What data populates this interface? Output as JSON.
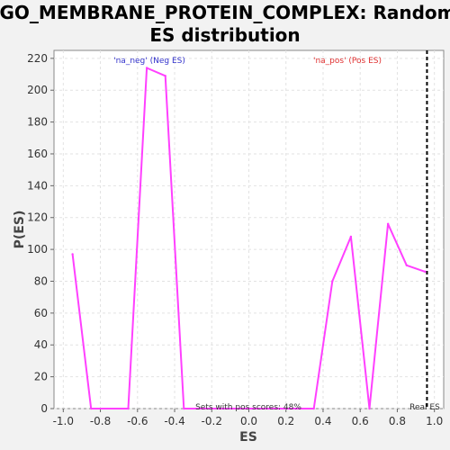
{
  "chart_data": {
    "type": "line",
    "title_lines": [
      "GO_MEMBRANE_PROTEIN_COMPLEX: Random",
      "ES distribution"
    ],
    "xlabel": "ES",
    "ylabel": "P(ES)",
    "xlim": [
      -1.05,
      1.05
    ],
    "ylim": [
      0,
      225
    ],
    "xticks": [
      -1.0,
      -0.8,
      -0.6,
      -0.4,
      -0.2,
      0.0,
      0.2,
      0.4,
      0.6,
      0.8,
      1.0
    ],
    "xtick_labels": [
      "-1.0",
      "-0.8",
      "-0.6",
      "-0.4",
      "-0.2",
      "0.0",
      "0.2",
      "0.4",
      "0.6",
      "0.8",
      "1.0"
    ],
    "yticks": [
      0,
      20,
      40,
      60,
      80,
      100,
      120,
      140,
      160,
      180,
      200,
      220
    ],
    "ytick_labels": [
      "0",
      "20",
      "40",
      "60",
      "80",
      "100",
      "120",
      "140",
      "160",
      "180",
      "200",
      "220"
    ],
    "grid": true,
    "series": [
      {
        "name": "P(ES)",
        "color": "#ff40ff",
        "x": [
          -0.95,
          -0.85,
          -0.65,
          -0.55,
          -0.45,
          -0.35,
          0.35,
          0.45,
          0.55,
          0.65,
          0.75,
          0.85,
          0.95
        ],
        "y": [
          97,
          0,
          0,
          214,
          209,
          0,
          0,
          80,
          108,
          0,
          116,
          90,
          86
        ]
      }
    ],
    "real_es": 0.96,
    "annotations": {
      "neg_label": "'na_neg' (Neg ES)",
      "pos_label": "'na_pos' (Pos ES)",
      "sets_label": "Sets with pos scores: 48%",
      "real_es_label": "Real ES"
    },
    "colors": {
      "neg": "#3333cc",
      "pos": "#e03030",
      "line": "#ff40ff",
      "real_es_line": "#000000"
    }
  }
}
